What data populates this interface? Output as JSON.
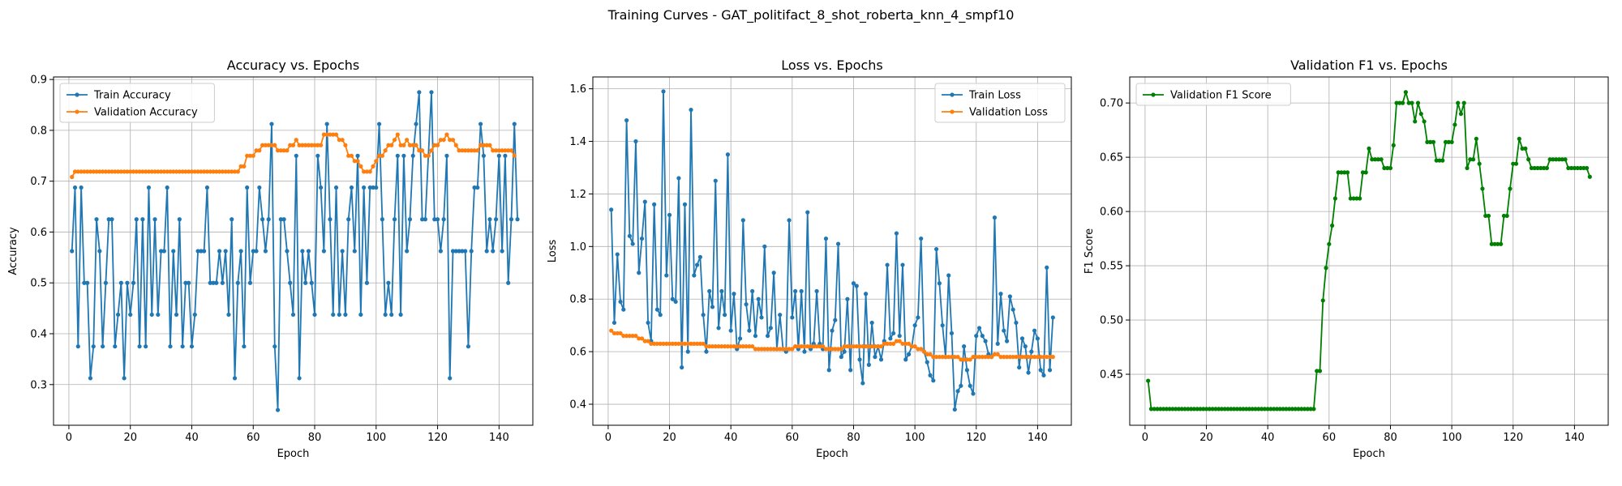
{
  "figure": {
    "title": "Training Curves - GAT_politifact_8_shot_roberta_knn_4_smpf10"
  },
  "chart_data": [
    {
      "type": "line",
      "title": "Accuracy vs. Epochs",
      "xlabel": "Epoch",
      "ylabel": "Accuracy",
      "xlim": [
        -5,
        151
      ],
      "ylim": [
        0.22,
        0.905
      ],
      "xticks": [
        0,
        20,
        40,
        60,
        80,
        100,
        120,
        140
      ],
      "yticks": [
        0.3,
        0.4,
        0.5,
        0.6,
        0.7,
        0.8,
        0.9
      ],
      "grid": true,
      "legend": "upper-left",
      "x": {
        "start": 1,
        "end": 145
      },
      "series": [
        {
          "name": "Train Accuracy",
          "color": "#1f77b4",
          "values": [
            0.5625,
            0.6875,
            0.375,
            0.6875,
            0.5,
            0.5,
            0.3125,
            0.375,
            0.625,
            0.5625,
            0.375,
            0.5,
            0.625,
            0.625,
            0.375,
            0.4375,
            0.5,
            0.3125,
            0.5,
            0.4375,
            0.5,
            0.625,
            0.375,
            0.625,
            0.375,
            0.6875,
            0.4375,
            0.625,
            0.4375,
            0.5625,
            0.5625,
            0.6875,
            0.375,
            0.5625,
            0.4375,
            0.625,
            0.375,
            0.5,
            0.5,
            0.375,
            0.4375,
            0.5625,
            0.5625,
            0.5625,
            0.6875,
            0.5,
            0.5,
            0.5,
            0.5625,
            0.5,
            0.5625,
            0.4375,
            0.625,
            0.3125,
            0.5,
            0.5625,
            0.375,
            0.6875,
            0.5,
            0.5625,
            0.5625,
            0.6875,
            0.625,
            0.5625,
            0.625,
            0.8125,
            0.375,
            0.25,
            0.625,
            0.625,
            0.5625,
            0.5,
            0.4375,
            0.75,
            0.3125,
            0.5625,
            0.5,
            0.5625,
            0.5,
            0.4375,
            0.75,
            0.6875,
            0.5625,
            0.8125,
            0.625,
            0.4375,
            0.6875,
            0.4375,
            0.5625,
            0.4375,
            0.625,
            0.6875,
            0.5625,
            0.75,
            0.4375,
            0.6875,
            0.5,
            0.6875,
            0.6875,
            0.6875,
            0.8125,
            0.625,
            0.4375,
            0.5,
            0.4375,
            0.625,
            0.75,
            0.4375,
            0.75,
            0.5625,
            0.625,
            0.75,
            0.8125,
            0.875,
            0.625,
            0.625,
            0.75,
            0.875,
            0.625,
            0.625,
            0.5625,
            0.625,
            0.75,
            0.3125,
            0.5625,
            0.5625,
            0.5625,
            0.5625,
            0.5625,
            0.375,
            0.5625,
            0.6875,
            0.6875,
            0.8125,
            0.75,
            0.5625,
            0.625,
            0.5625,
            0.625,
            0.75,
            0.5625,
            0.75,
            0.5,
            0.625,
            0.8125,
            0.625
          ]
        },
        {
          "name": "Validation Accuracy",
          "color": "#ff7f0e",
          "values": [
            0.7083,
            0.7188,
            0.7188,
            0.7188,
            0.7188,
            0.7188,
            0.7188,
            0.7188,
            0.7188,
            0.7188,
            0.7188,
            0.7188,
            0.7188,
            0.7188,
            0.7188,
            0.7188,
            0.7188,
            0.7188,
            0.7188,
            0.7188,
            0.7188,
            0.7188,
            0.7188,
            0.7188,
            0.7188,
            0.7188,
            0.7188,
            0.7188,
            0.7188,
            0.7188,
            0.7188,
            0.7188,
            0.7188,
            0.7188,
            0.7188,
            0.7188,
            0.7188,
            0.7188,
            0.7188,
            0.7188,
            0.7188,
            0.7188,
            0.7188,
            0.7188,
            0.7188,
            0.7188,
            0.7188,
            0.7188,
            0.7188,
            0.7188,
            0.7188,
            0.7188,
            0.7188,
            0.7188,
            0.7188,
            0.7292,
            0.7292,
            0.75,
            0.75,
            0.75,
            0.7604,
            0.7604,
            0.7708,
            0.7708,
            0.7708,
            0.7708,
            0.7708,
            0.7604,
            0.7604,
            0.7604,
            0.7604,
            0.7708,
            0.7708,
            0.7812,
            0.7708,
            0.7708,
            0.7708,
            0.7708,
            0.7708,
            0.7708,
            0.7708,
            0.7708,
            0.7917,
            0.7917,
            0.7917,
            0.7917,
            0.7917,
            0.7812,
            0.7812,
            0.7708,
            0.75,
            0.75,
            0.7396,
            0.7396,
            0.7292,
            0.7188,
            0.7188,
            0.7188,
            0.7292,
            0.7396,
            0.75,
            0.75,
            0.7604,
            0.7708,
            0.7708,
            0.7812,
            0.7917,
            0.7708,
            0.7708,
            0.7812,
            0.7708,
            0.7708,
            0.7708,
            0.7604,
            0.7604,
            0.75,
            0.75,
            0.7604,
            0.7708,
            0.7708,
            0.7812,
            0.7812,
            0.7917,
            0.7812,
            0.7812,
            0.7708,
            0.7604,
            0.7604,
            0.7604,
            0.7604,
            0.7604,
            0.7604,
            0.7604,
            0.7708,
            0.7708,
            0.7708,
            0.7708,
            0.7604,
            0.7604,
            0.7604,
            0.7604,
            0.7604,
            0.7604,
            0.7604,
            0.75
          ]
        }
      ]
    },
    {
      "type": "line",
      "title": "Loss vs. Epochs",
      "xlabel": "Epoch",
      "ylabel": "Loss",
      "xlim": [
        -5,
        151
      ],
      "ylim": [
        0.32,
        1.645
      ],
      "xticks": [
        0,
        20,
        40,
        60,
        80,
        100,
        120,
        140
      ],
      "yticks": [
        0.4,
        0.6,
        0.8,
        1.0,
        1.2,
        1.4,
        1.6
      ],
      "grid": true,
      "legend": "upper-right",
      "x": {
        "start": 1,
        "end": 145
      },
      "series": [
        {
          "name": "Train Loss",
          "color": "#1f77b4",
          "values": [
            1.14,
            0.71,
            0.97,
            0.79,
            0.76,
            1.48,
            1.04,
            1.01,
            1.4,
            0.9,
            1.03,
            1.17,
            0.71,
            0.64,
            1.16,
            0.76,
            0.74,
            1.59,
            0.89,
            1.12,
            0.8,
            0.79,
            1.26,
            0.54,
            1.16,
            0.6,
            1.52,
            0.89,
            0.93,
            0.96,
            0.74,
            0.6,
            0.83,
            0.77,
            1.25,
            0.69,
            0.83,
            0.74,
            1.35,
            0.68,
            0.82,
            0.61,
            0.65,
            1.1,
            0.78,
            0.68,
            0.83,
            0.66,
            0.8,
            0.73,
            1.0,
            0.66,
            0.69,
            0.9,
            0.61,
            0.74,
            0.61,
            0.6,
            1.1,
            0.73,
            0.83,
            0.61,
            0.83,
            0.6,
            1.13,
            0.61,
            0.63,
            0.83,
            0.63,
            0.61,
            1.03,
            0.53,
            0.68,
            0.72,
            1.01,
            0.58,
            0.6,
            0.8,
            0.53,
            0.86,
            0.85,
            0.57,
            0.48,
            0.82,
            0.55,
            0.71,
            0.58,
            0.62,
            0.57,
            0.64,
            0.93,
            0.65,
            0.67,
            1.05,
            0.66,
            0.93,
            0.57,
            0.59,
            0.62,
            0.7,
            0.73,
            1.03,
            0.6,
            0.56,
            0.51,
            0.49,
            0.99,
            0.86,
            0.7,
            0.58,
            0.89,
            0.67,
            0.38,
            0.45,
            0.47,
            0.62,
            0.53,
            0.47,
            0.44,
            0.66,
            0.69,
            0.66,
            0.64,
            0.59,
            0.58,
            1.11,
            0.63,
            0.82,
            0.68,
            0.64,
            0.81,
            0.76,
            0.71,
            0.54,
            0.65,
            0.62,
            0.52,
            0.6,
            0.68,
            0.65,
            0.53,
            0.51,
            0.92,
            0.53,
            0.73
          ]
        },
        {
          "name": "Validation Loss",
          "color": "#ff7f0e",
          "values": [
            0.68,
            0.67,
            0.67,
            0.67,
            0.66,
            0.66,
            0.66,
            0.66,
            0.66,
            0.65,
            0.65,
            0.64,
            0.64,
            0.63,
            0.63,
            0.63,
            0.63,
            0.63,
            0.63,
            0.63,
            0.63,
            0.63,
            0.63,
            0.63,
            0.63,
            0.63,
            0.63,
            0.63,
            0.63,
            0.63,
            0.63,
            0.62,
            0.62,
            0.62,
            0.62,
            0.62,
            0.62,
            0.62,
            0.62,
            0.62,
            0.62,
            0.62,
            0.62,
            0.62,
            0.62,
            0.62,
            0.62,
            0.61,
            0.61,
            0.61,
            0.61,
            0.61,
            0.61,
            0.61,
            0.61,
            0.61,
            0.61,
            0.61,
            0.61,
            0.61,
            0.62,
            0.62,
            0.62,
            0.62,
            0.62,
            0.62,
            0.62,
            0.62,
            0.62,
            0.62,
            0.61,
            0.61,
            0.61,
            0.61,
            0.61,
            0.61,
            0.62,
            0.62,
            0.62,
            0.62,
            0.62,
            0.62,
            0.62,
            0.62,
            0.62,
            0.62,
            0.62,
            0.62,
            0.62,
            0.63,
            0.63,
            0.63,
            0.63,
            0.64,
            0.64,
            0.63,
            0.63,
            0.63,
            0.62,
            0.62,
            0.61,
            0.61,
            0.6,
            0.59,
            0.59,
            0.58,
            0.58,
            0.58,
            0.58,
            0.58,
            0.58,
            0.58,
            0.58,
            0.58,
            0.57,
            0.57,
            0.57,
            0.57,
            0.58,
            0.58,
            0.58,
            0.58,
            0.58,
            0.58,
            0.58,
            0.59,
            0.59,
            0.58,
            0.58,
            0.58,
            0.58,
            0.58,
            0.58,
            0.58,
            0.58,
            0.58,
            0.58,
            0.58,
            0.58,
            0.58,
            0.58,
            0.58,
            0.58,
            0.58,
            0.58
          ]
        }
      ]
    },
    {
      "type": "line",
      "title": "Validation F1 vs. Epochs",
      "xlabel": "Epoch",
      "ylabel": "F1 Score",
      "xlim": [
        -5,
        151
      ],
      "ylim": [
        0.403,
        0.724
      ],
      "xticks": [
        0,
        20,
        40,
        60,
        80,
        100,
        120,
        140
      ],
      "yticks": [
        0.45,
        0.5,
        0.55,
        0.6,
        0.65,
        0.7
      ],
      "grid": true,
      "legend": "upper-left",
      "x": {
        "start": 1,
        "end": 145
      },
      "series": [
        {
          "name": "Validation F1 Score",
          "color": "#008000",
          "values": [
            0.444,
            0.418,
            0.418,
            0.418,
            0.418,
            0.418,
            0.418,
            0.418,
            0.418,
            0.418,
            0.418,
            0.418,
            0.418,
            0.418,
            0.418,
            0.418,
            0.418,
            0.418,
            0.418,
            0.418,
            0.418,
            0.418,
            0.418,
            0.418,
            0.418,
            0.418,
            0.418,
            0.418,
            0.418,
            0.418,
            0.418,
            0.418,
            0.418,
            0.418,
            0.418,
            0.418,
            0.418,
            0.418,
            0.418,
            0.418,
            0.418,
            0.418,
            0.418,
            0.418,
            0.418,
            0.418,
            0.418,
            0.418,
            0.418,
            0.418,
            0.418,
            0.418,
            0.418,
            0.418,
            0.418,
            0.453,
            0.453,
            0.518,
            0.548,
            0.57,
            0.587,
            0.612,
            0.636,
            0.636,
            0.636,
            0.636,
            0.612,
            0.612,
            0.612,
            0.612,
            0.636,
            0.636,
            0.658,
            0.648,
            0.648,
            0.648,
            0.648,
            0.64,
            0.64,
            0.64,
            0.661,
            0.7,
            0.7,
            0.7,
            0.71,
            0.7,
            0.7,
            0.683,
            0.7,
            0.69,
            0.683,
            0.664,
            0.664,
            0.664,
            0.647,
            0.647,
            0.647,
            0.664,
            0.664,
            0.664,
            0.68,
            0.7,
            0.69,
            0.7,
            0.64,
            0.648,
            0.648,
            0.667,
            0.644,
            0.621,
            0.596,
            0.596,
            0.57,
            0.57,
            0.57,
            0.57,
            0.596,
            0.596,
            0.621,
            0.644,
            0.644,
            0.667,
            0.658,
            0.658,
            0.648,
            0.64,
            0.64,
            0.64,
            0.64,
            0.64,
            0.64,
            0.648,
            0.648,
            0.648,
            0.648,
            0.648,
            0.648,
            0.64,
            0.64,
            0.64,
            0.64,
            0.64,
            0.64,
            0.64,
            0.632
          ]
        }
      ]
    }
  ]
}
